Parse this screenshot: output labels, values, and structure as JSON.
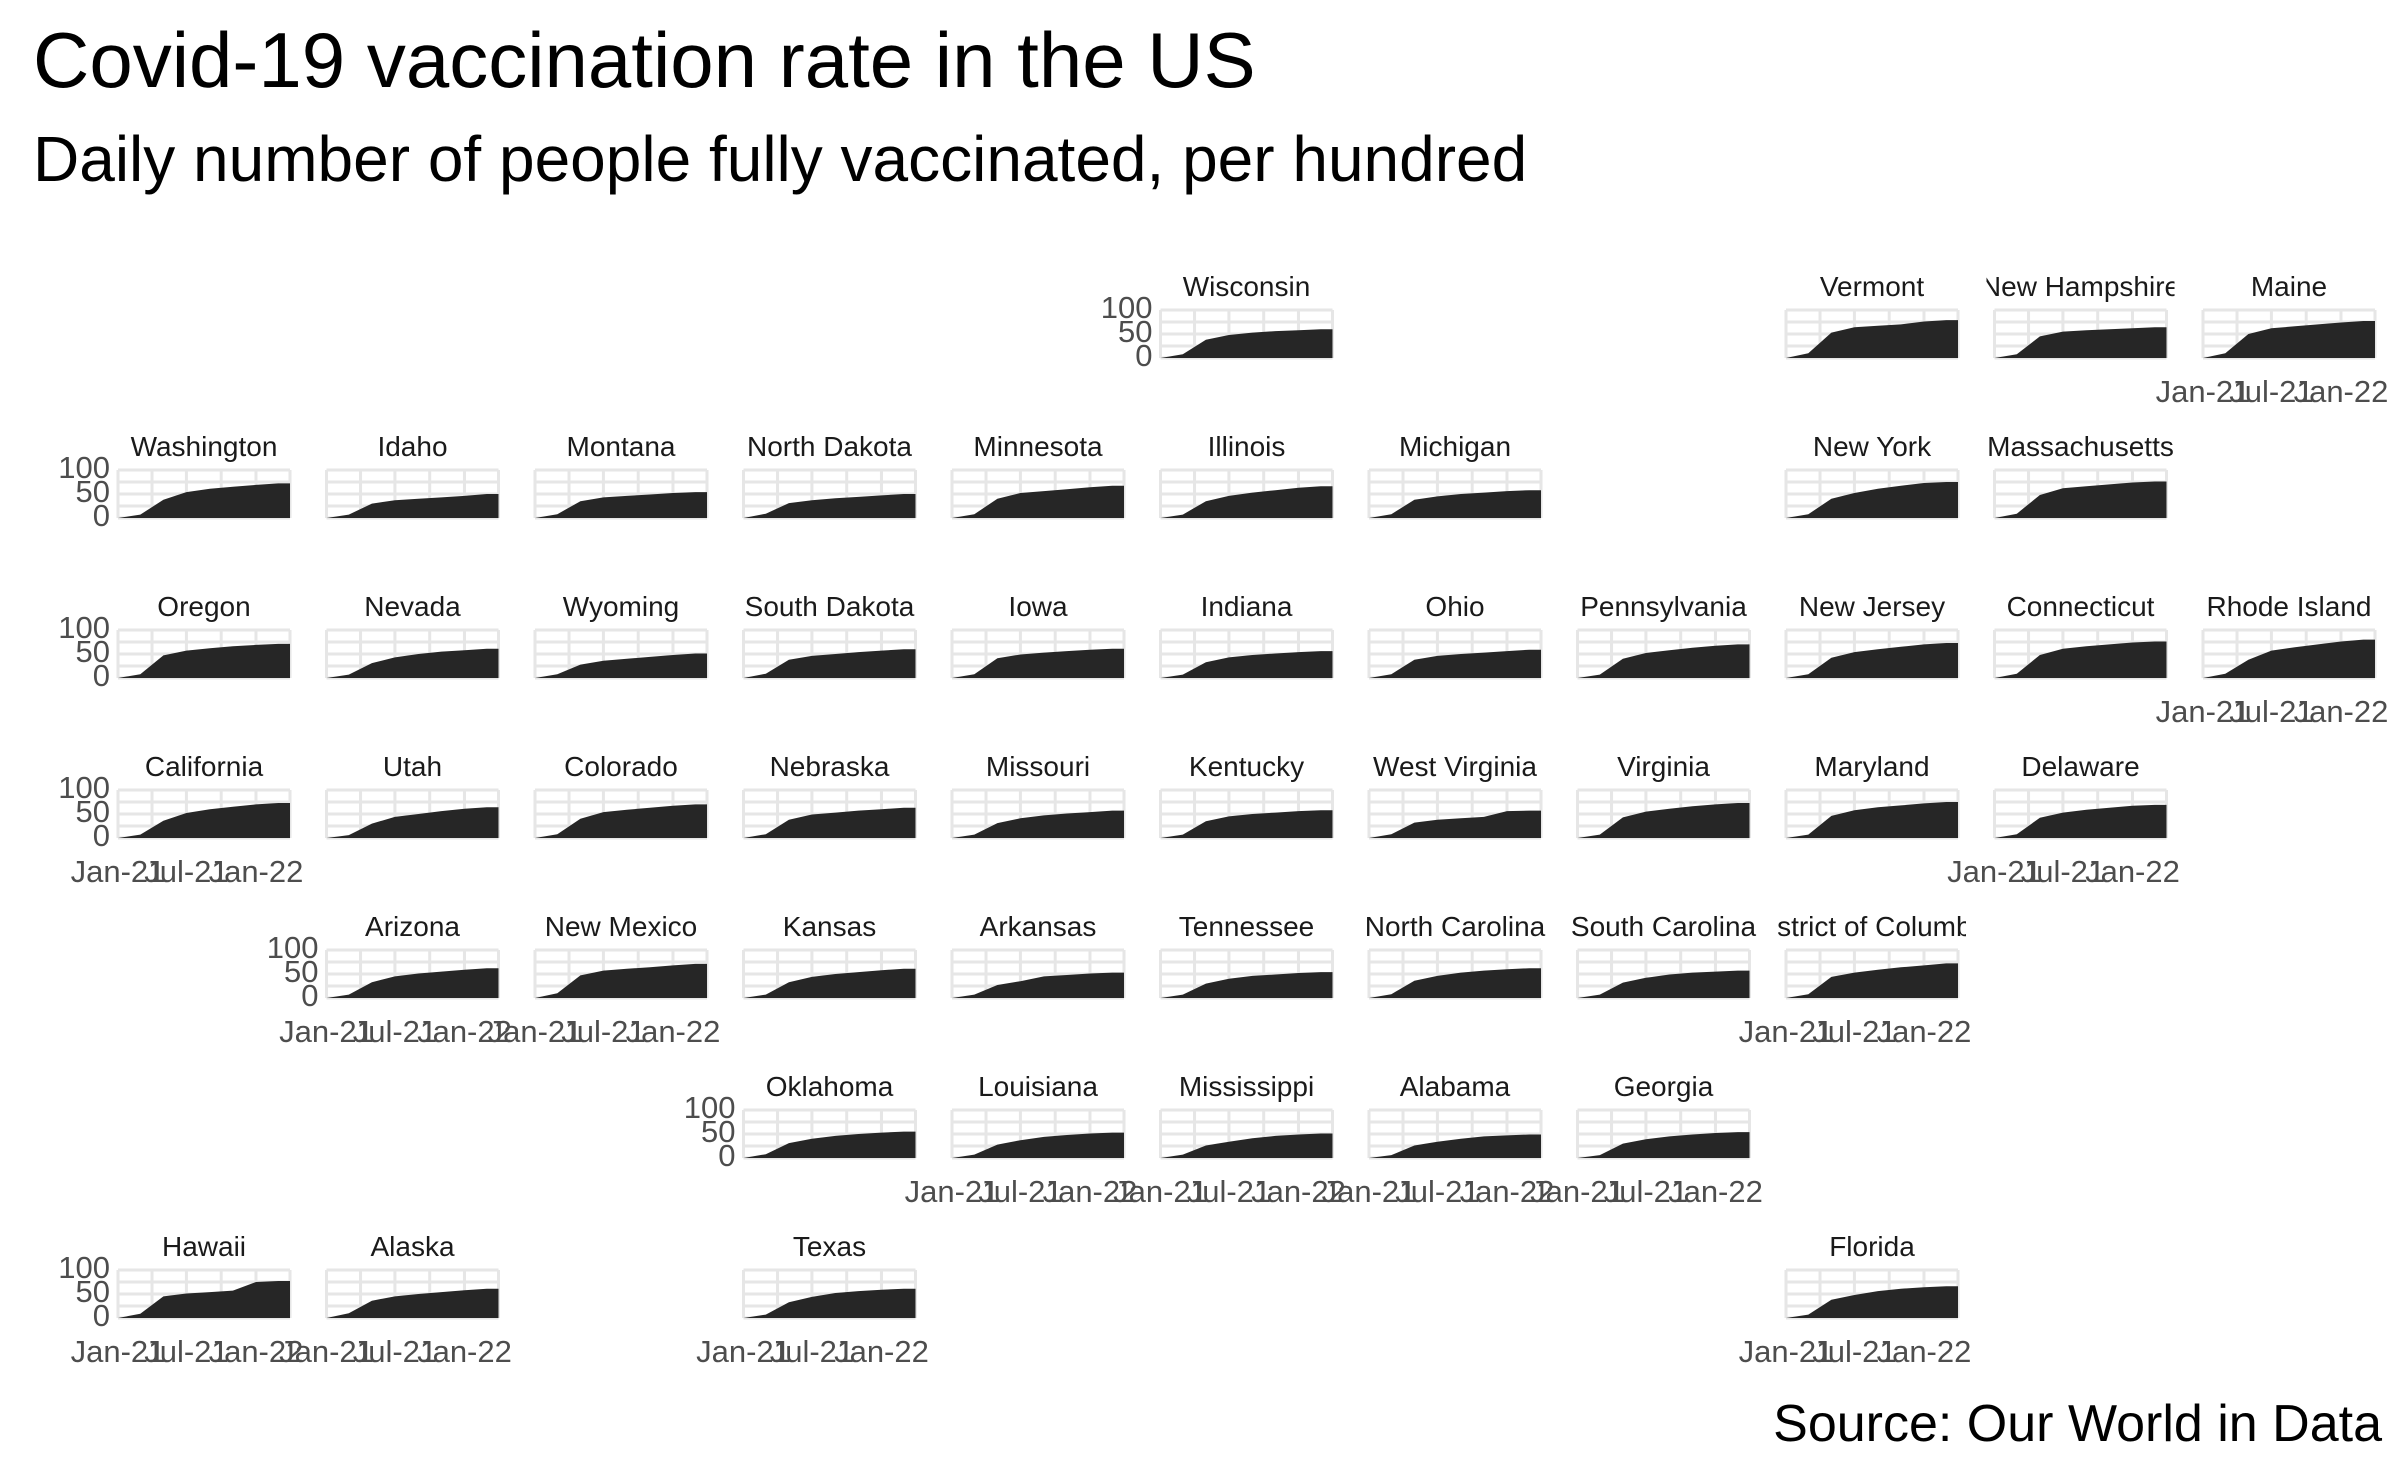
{
  "title": "Covid-19 vaccination rate in the US",
  "subtitle": "Daily number of people fully vaccinated, per hundred",
  "caption": "Source: Our World in Data",
  "chart_data": {
    "type": "area",
    "layout": "geofacet-grid",
    "x_tick_labels": [
      "Jan-21",
      "Jul-21",
      "Jan-22"
    ],
    "x_range": [
      "2021-01-01",
      "2022-04-01"
    ],
    "y_tick_labels": [
      "0",
      "50",
      "100"
    ],
    "ylim": [
      0,
      100
    ],
    "grid": true,
    "fill_color": "#262626",
    "panel_grid_color": "#e6e6e6",
    "x_dates": [
      "2021-01-01",
      "2021-03-01",
      "2021-05-01",
      "2021-07-01",
      "2021-09-01",
      "2021-11-01",
      "2022-01-01",
      "2022-03-01"
    ],
    "panels": [
      {
        "state": "Wisconsin",
        "row": 1,
        "col": 6,
        "values": [
          0,
          8,
          38,
          48,
          53,
          56,
          58,
          60
        ]
      },
      {
        "state": "Vermont",
        "row": 1,
        "col": 9,
        "values": [
          0,
          10,
          53,
          64,
          67,
          70,
          76,
          79
        ]
      },
      {
        "state": "New Hampshire",
        "row": 1,
        "col": 10,
        "values": [
          0,
          8,
          45,
          55,
          58,
          60,
          62,
          64
        ]
      },
      {
        "state": "Maine",
        "row": 1,
        "col": 11,
        "values": [
          0,
          10,
          50,
          62,
          66,
          70,
          74,
          77
        ]
      },
      {
        "state": "Washington",
        "row": 2,
        "col": 1,
        "values": [
          0,
          7,
          38,
          54,
          61,
          65,
          69,
          72
        ]
      },
      {
        "state": "Idaho",
        "row": 2,
        "col": 2,
        "values": [
          0,
          7,
          30,
          37,
          40,
          43,
          46,
          50
        ]
      },
      {
        "state": "Montana",
        "row": 2,
        "col": 3,
        "values": [
          0,
          8,
          35,
          43,
          46,
          49,
          52,
          54
        ]
      },
      {
        "state": "North Dakota",
        "row": 2,
        "col": 4,
        "values": [
          0,
          9,
          31,
          37,
          41,
          44,
          47,
          50
        ]
      },
      {
        "state": "Minnesota",
        "row": 2,
        "col": 5,
        "values": [
          0,
          8,
          40,
          52,
          56,
          60,
          64,
          67
        ]
      },
      {
        "state": "Illinois",
        "row": 2,
        "col": 6,
        "values": [
          0,
          7,
          35,
          46,
          53,
          58,
          63,
          66
        ]
      },
      {
        "state": "Michigan",
        "row": 2,
        "col": 7,
        "values": [
          0,
          8,
          38,
          45,
          50,
          53,
          56,
          58
        ]
      },
      {
        "state": "New York",
        "row": 2,
        "col": 9,
        "values": [
          0,
          8,
          40,
          52,
          61,
          67,
          73,
          75
        ]
      },
      {
        "state": "Massachusetts",
        "row": 2,
        "col": 10,
        "values": [
          0,
          9,
          48,
          62,
          66,
          70,
          74,
          76
        ]
      },
      {
        "state": "Oregon",
        "row": 3,
        "col": 1,
        "values": [
          0,
          8,
          47,
          57,
          62,
          66,
          69,
          71
        ]
      },
      {
        "state": "Nevada",
        "row": 3,
        "col": 2,
        "values": [
          0,
          7,
          31,
          43,
          50,
          55,
          58,
          61
        ]
      },
      {
        "state": "Wyoming",
        "row": 3,
        "col": 3,
        "values": [
          0,
          8,
          28,
          36,
          40,
          44,
          48,
          51
        ]
      },
      {
        "state": "South Dakota",
        "row": 3,
        "col": 4,
        "values": [
          0,
          9,
          38,
          46,
          50,
          54,
          57,
          60
        ]
      },
      {
        "state": "Iowa",
        "row": 3,
        "col": 5,
        "values": [
          0,
          8,
          41,
          49,
          53,
          56,
          59,
          61
        ]
      },
      {
        "state": "Indiana",
        "row": 3,
        "col": 6,
        "values": [
          0,
          7,
          33,
          43,
          48,
          51,
          54,
          56
        ]
      },
      {
        "state": "Ohio",
        "row": 3,
        "col": 7,
        "values": [
          0,
          8,
          38,
          46,
          50,
          53,
          56,
          59
        ]
      },
      {
        "state": "Pennsylvania",
        "row": 3,
        "col": 8,
        "values": [
          0,
          7,
          40,
          52,
          58,
          63,
          67,
          70
        ]
      },
      {
        "state": "New Jersey",
        "row": 3,
        "col": 9,
        "values": [
          0,
          8,
          42,
          54,
          60,
          65,
          70,
          73
        ]
      },
      {
        "state": "Connecticut",
        "row": 3,
        "col": 10,
        "values": [
          0,
          9,
          48,
          61,
          66,
          70,
          74,
          76
        ]
      },
      {
        "state": "Rhode Island",
        "row": 3,
        "col": 11,
        "values": [
          0,
          9,
          38,
          57,
          64,
          70,
          76,
          80
        ]
      },
      {
        "state": "California",
        "row": 4,
        "col": 1,
        "values": [
          0,
          7,
          36,
          52,
          60,
          65,
          70,
          73
        ]
      },
      {
        "state": "Utah",
        "row": 4,
        "col": 2,
        "values": [
          0,
          6,
          30,
          44,
          50,
          56,
          61,
          64
        ]
      },
      {
        "state": "Colorado",
        "row": 4,
        "col": 3,
        "values": [
          0,
          8,
          40,
          54,
          59,
          63,
          67,
          70
        ]
      },
      {
        "state": "Nebraska",
        "row": 4,
        "col": 4,
        "values": [
          0,
          8,
          38,
          49,
          53,
          57,
          60,
          63
        ]
      },
      {
        "state": "Missouri",
        "row": 4,
        "col": 5,
        "values": [
          0,
          7,
          31,
          41,
          47,
          51,
          54,
          57
        ]
      },
      {
        "state": "Kentucky",
        "row": 4,
        "col": 6,
        "values": [
          0,
          7,
          35,
          45,
          50,
          53,
          56,
          58
        ]
      },
      {
        "state": "West Virginia",
        "row": 4,
        "col": 7,
        "values": [
          0,
          8,
          32,
          38,
          41,
          44,
          56,
          57
        ]
      },
      {
        "state": "Virginia",
        "row": 4,
        "col": 8,
        "values": [
          0,
          7,
          43,
          55,
          61,
          66,
          70,
          73
        ]
      },
      {
        "state": "Maryland",
        "row": 4,
        "col": 9,
        "values": [
          0,
          7,
          46,
          58,
          64,
          68,
          72,
          75
        ]
      },
      {
        "state": "Delaware",
        "row": 4,
        "col": 10,
        "values": [
          0,
          8,
          42,
          53,
          59,
          63,
          67,
          69
        ]
      },
      {
        "state": "Arizona",
        "row": 5,
        "col": 2,
        "values": [
          0,
          7,
          33,
          45,
          51,
          55,
          59,
          62
        ]
      },
      {
        "state": "New Mexico",
        "row": 5,
        "col": 3,
        "values": [
          0,
          10,
          47,
          57,
          61,
          64,
          68,
          71
        ]
      },
      {
        "state": "Kansas",
        "row": 5,
        "col": 4,
        "values": [
          0,
          7,
          33,
          44,
          50,
          54,
          58,
          61
        ]
      },
      {
        "state": "Arkansas",
        "row": 5,
        "col": 5,
        "values": [
          0,
          7,
          27,
          35,
          45,
          48,
          51,
          53
        ]
      },
      {
        "state": "Tennessee",
        "row": 5,
        "col": 6,
        "values": [
          0,
          7,
          30,
          40,
          46,
          49,
          52,
          54
        ]
      },
      {
        "state": "North Carolina",
        "row": 5,
        "col": 7,
        "values": [
          0,
          8,
          36,
          46,
          53,
          57,
          60,
          62
        ]
      },
      {
        "state": "South Carolina",
        "row": 5,
        "col": 8,
        "values": [
          0,
          7,
          32,
          42,
          49,
          53,
          55,
          57
        ]
      },
      {
        "state": "District of Columbia",
        "row": 5,
        "col": 9,
        "values": [
          0,
          8,
          44,
          53,
          59,
          64,
          68,
          72
        ]
      },
      {
        "state": "Oklahoma",
        "row": 6,
        "col": 4,
        "values": [
          0,
          8,
          31,
          40,
          46,
          50,
          53,
          55
        ]
      },
      {
        "state": "Louisiana",
        "row": 6,
        "col": 5,
        "values": [
          0,
          7,
          28,
          37,
          44,
          48,
          51,
          53
        ]
      },
      {
        "state": "Mississippi",
        "row": 6,
        "col": 6,
        "values": [
          0,
          7,
          26,
          34,
          41,
          46,
          49,
          51
        ]
      },
      {
        "state": "Alabama",
        "row": 6,
        "col": 7,
        "values": [
          0,
          6,
          26,
          34,
          40,
          45,
          47,
          49
        ]
      },
      {
        "state": "Georgia",
        "row": 6,
        "col": 8,
        "values": [
          0,
          6,
          30,
          39,
          45,
          49,
          52,
          54
        ]
      },
      {
        "state": "Hawaii",
        "row": 7,
        "col": 1,
        "values": [
          0,
          9,
          45,
          51,
          54,
          57,
          75,
          77
        ]
      },
      {
        "state": "Alaska",
        "row": 7,
        "col": 2,
        "values": [
          0,
          10,
          36,
          45,
          50,
          54,
          58,
          61
        ]
      },
      {
        "state": "Texas",
        "row": 7,
        "col": 4,
        "values": [
          0,
          7,
          33,
          44,
          52,
          56,
          59,
          61
        ]
      },
      {
        "state": "Florida",
        "row": 7,
        "col": 9,
        "values": [
          0,
          7,
          38,
          48,
          56,
          61,
          64,
          66
        ]
      }
    ]
  }
}
